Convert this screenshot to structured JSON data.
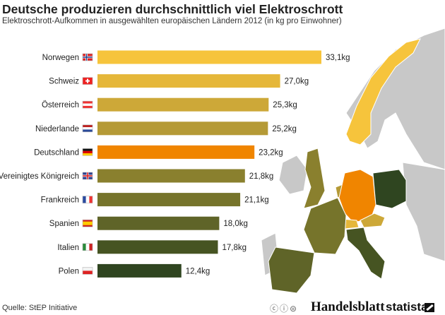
{
  "header": {
    "title": "Deutsche produzieren durchschnittlich viel Elektroschrott",
    "subtitle": "Elektroschrott-Aufkommen in ausgewählten europäischen Ländern 2012 (in kg pro Einwohner)"
  },
  "footer": {
    "source": "Quelle: StEP Initiative",
    "license_icons": "ⓒⓘ⊜",
    "brand1": "Handelsblatt",
    "brand2": "statista"
  },
  "chart_data": {
    "type": "bar",
    "orientation": "horizontal",
    "title": "Deutsche produzieren durchschnittlich viel Elektroschrott",
    "xlabel": "",
    "ylabel": "",
    "unit": "kg",
    "categories": [
      "Norwegen",
      "Schweiz",
      "Österreich",
      "Niederlande",
      "Deutschland",
      "Vereinigtes Königreich",
      "Frankreich",
      "Spanien",
      "Italien",
      "Polen"
    ],
    "values": [
      33.1,
      27.0,
      25.3,
      25.2,
      23.2,
      21.8,
      21.1,
      18.0,
      17.8,
      12.4
    ],
    "labels": [
      "33,1kg",
      "27,0kg",
      "25,3kg",
      "25,2kg",
      "23,2kg",
      "21,8kg",
      "21,1kg",
      "18,0kg",
      "17,8kg",
      "12,4kg"
    ],
    "colors": [
      "#f6c43c",
      "#e5b73a",
      "#cda838",
      "#b59a36",
      "#f08500",
      "#8a802e",
      "#76742b",
      "#5f6428",
      "#465422",
      "#2f4520"
    ],
    "flags": [
      "no",
      "ch",
      "at",
      "nl",
      "de",
      "gb",
      "fr",
      "es",
      "it",
      "pl"
    ],
    "xlim": [
      0,
      34
    ],
    "grid": false
  }
}
